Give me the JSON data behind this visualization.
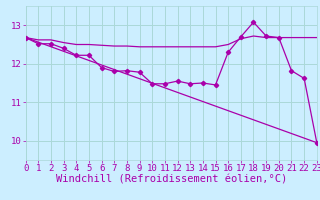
{
  "xlabel": "Windchill (Refroidissement éolien,°C)",
  "bg_color": "#cceeff",
  "line_color": "#aa00aa",
  "grid_color": "#aad8d8",
  "x_ticks": [
    0,
    1,
    2,
    3,
    4,
    5,
    6,
    7,
    8,
    9,
    10,
    11,
    12,
    13,
    14,
    15,
    16,
    17,
    18,
    19,
    20,
    21,
    22,
    23
  ],
  "y_ticks": [
    10,
    11,
    12,
    13
  ],
  "ylim": [
    9.5,
    13.5
  ],
  "xlim": [
    0,
    23
  ],
  "line1_x": [
    0,
    1,
    2,
    3,
    4,
    5,
    6,
    7,
    8,
    9,
    10,
    11,
    12,
    13,
    14,
    15,
    16,
    17,
    18,
    19,
    20,
    21,
    22,
    23
  ],
  "line1_y": [
    12.68,
    12.52,
    12.52,
    12.4,
    12.22,
    12.22,
    11.9,
    11.8,
    11.82,
    11.78,
    11.48,
    11.48,
    11.55,
    11.48,
    11.5,
    11.45,
    12.3,
    12.7,
    13.08,
    12.72,
    12.68,
    11.82,
    11.62,
    9.95
  ],
  "line2_x": [
    0,
    1,
    2,
    3,
    4,
    5,
    6,
    7,
    8,
    9,
    10,
    11,
    12,
    13,
    14,
    15,
    16,
    17,
    18,
    19,
    20,
    21,
    22,
    23
  ],
  "line2_y": [
    12.68,
    12.62,
    12.62,
    12.55,
    12.5,
    12.5,
    12.48,
    12.46,
    12.46,
    12.44,
    12.44,
    12.44,
    12.44,
    12.44,
    12.44,
    12.44,
    12.5,
    12.65,
    12.72,
    12.68,
    12.68,
    12.68,
    12.68,
    12.68
  ],
  "line3_x": [
    0,
    23
  ],
  "line3_y": [
    12.68,
    9.95
  ],
  "font_family": "monospace",
  "tick_fontsize": 6.5,
  "xlabel_fontsize": 7.5
}
